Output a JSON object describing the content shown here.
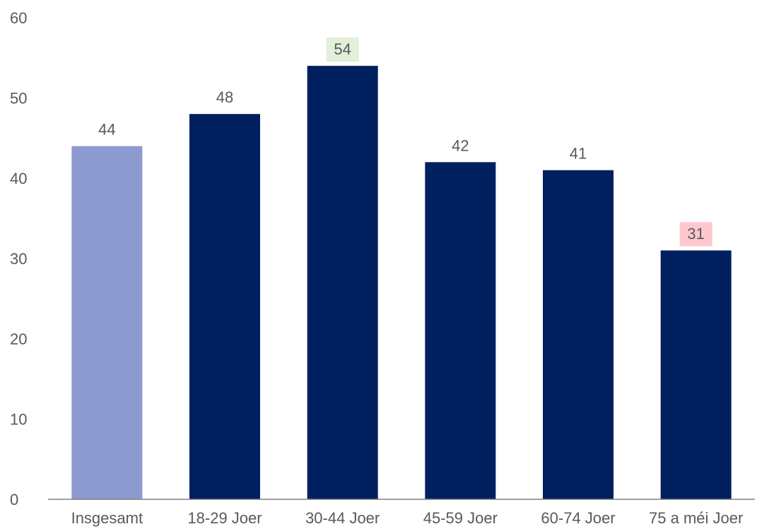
{
  "chart_data": {
    "type": "bar",
    "categories": [
      "Insgesamt",
      "18-29 Joer",
      "30-44 Joer",
      "45-59 Joer",
      "60-74 Joer",
      "75 a méi Joer"
    ],
    "values": [
      44,
      48,
      54,
      42,
      41,
      31
    ],
    "ylim": [
      0,
      60
    ],
    "yticks": [
      0,
      10,
      20,
      30,
      40,
      50,
      60
    ],
    "grid": false,
    "legend": "none",
    "bar_colors": [
      "#8d9acf",
      "#001f5f",
      "#001f5f",
      "#001f5f",
      "#001f5f",
      "#001f5f"
    ],
    "label_highlights": [
      "",
      "",
      "#e2efd9",
      "",
      "",
      "#ffc7ce"
    ],
    "label_color": "#595959",
    "axis_color": "#808080"
  }
}
